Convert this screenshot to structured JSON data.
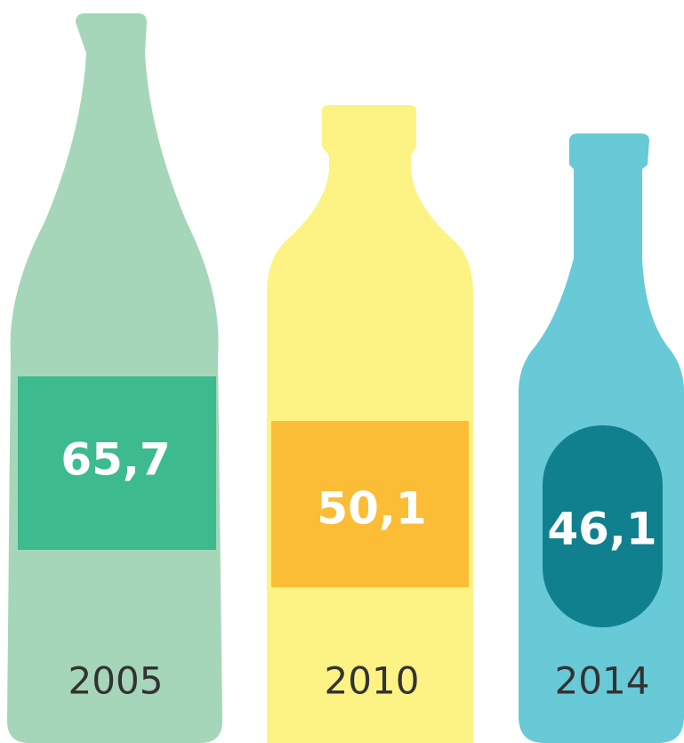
{
  "chart_data": {
    "type": "pictograph",
    "categories": [
      "2005",
      "2010",
      "2014"
    ],
    "values": [
      65.7,
      50.1,
      46.1
    ],
    "value_labels": [
      "65,7",
      "50,1",
      "46,1"
    ],
    "colors": [
      "#a6d6b9",
      "#fdf385",
      "#68c9d7"
    ],
    "label_colors": [
      "#3dbb8f",
      "#fbbd36",
      "#10808f"
    ]
  }
}
